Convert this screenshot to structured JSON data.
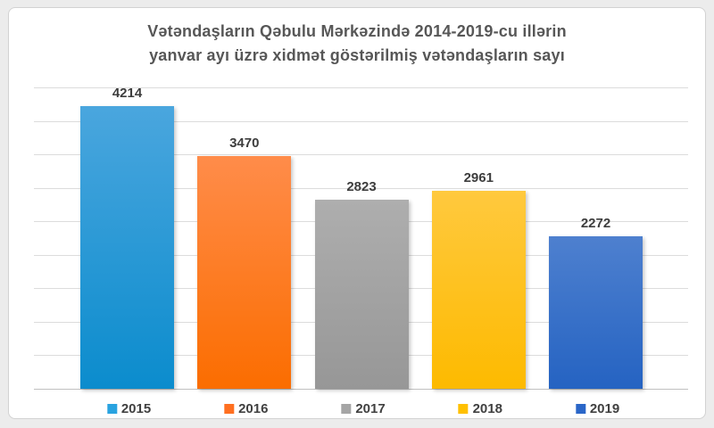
{
  "page": {
    "background_color": "#ececec",
    "frame_background": "#ffffff",
    "frame_border_color": "#d2d2d2",
    "gridline_color": "#dcdcdc",
    "axis_line_color": "#c0c0c0",
    "title_color": "#575757",
    "label_color": "#3d3d3d"
  },
  "chart_data": {
    "type": "bar",
    "title": "Vətəndaşların Qəbulu Mərkəzində 2014-2019-cu illərin yanvar ayı üzrə xidmət göstərilmiş vətəndaşların sayı",
    "title_lines": [
      "Vətəndaşların Qəbulu Mərkəzində 2014-2019-cu illərin",
      "yanvar ayı üzrə xidmət göstərilmiş vətəndaşların sayı"
    ],
    "categories": [
      "2015",
      "2016",
      "2017",
      "2018",
      "2019"
    ],
    "values": [
      4214,
      3470,
      2823,
      2961,
      2272
    ],
    "data_labels": [
      "4214",
      "3470",
      "2823",
      "2961",
      "2272"
    ],
    "xlabel": "",
    "ylabel": "",
    "ylim": [
      0,
      4500
    ],
    "gridline_interval": 500,
    "grid": true,
    "legend_position": "bottom",
    "series_colors": [
      {
        "name": "2015",
        "top": "#4aa6de",
        "bottom": "#0b8ccd",
        "legend": "#29a3e0"
      },
      {
        "name": "2016",
        "top": "#ff8c4a",
        "bottom": "#fb6d00",
        "legend": "#ff6f20"
      },
      {
        "name": "2017",
        "top": "#aeaeae",
        "bottom": "#979797",
        "legend": "#a5a5a5"
      },
      {
        "name": "2018",
        "top": "#ffc93e",
        "bottom": "#fdba00",
        "legend": "#ffc000"
      },
      {
        "name": "2019",
        "top": "#4e80cf",
        "bottom": "#2563c2",
        "legend": "#2a66c8"
      }
    ]
  }
}
